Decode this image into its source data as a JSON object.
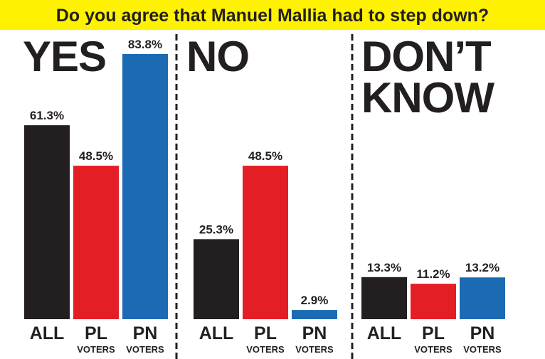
{
  "title": "Do you agree that Manuel Mallia had to step down?",
  "chart_data": [
    {
      "type": "bar",
      "title": [
        "YES"
      ],
      "categories": [
        [
          "ALL"
        ],
        [
          "PL",
          "VOTERS"
        ],
        [
          "PN",
          "VOTERS"
        ]
      ],
      "values": [
        61.3,
        48.5,
        83.8
      ],
      "value_labels": [
        "61.3%",
        "48.5%",
        "83.8%"
      ],
      "colors": [
        "#231f20",
        "#e31e24",
        "#1c6ab4"
      ]
    },
    {
      "type": "bar",
      "title": [
        "NO"
      ],
      "categories": [
        [
          "ALL"
        ],
        [
          "PL",
          "VOTERS"
        ],
        [
          "PN",
          "VOTERS"
        ]
      ],
      "values": [
        25.3,
        48.5,
        2.9
      ],
      "value_labels": [
        "25.3%",
        "48.5%",
        "2.9%"
      ],
      "colors": [
        "#231f20",
        "#e31e24",
        "#1c6ab4"
      ]
    },
    {
      "type": "bar",
      "title": [
        "DON’T",
        "KNOW"
      ],
      "categories": [
        [
          "ALL"
        ],
        [
          "PL",
          "VOTERS"
        ],
        [
          "PN",
          "VOTERS"
        ]
      ],
      "values": [
        13.3,
        11.2,
        13.2
      ],
      "value_labels": [
        "13.3%",
        "11.2%",
        "13.2%"
      ],
      "colors": [
        "#231f20",
        "#e31e24",
        "#1c6ab4"
      ]
    }
  ]
}
